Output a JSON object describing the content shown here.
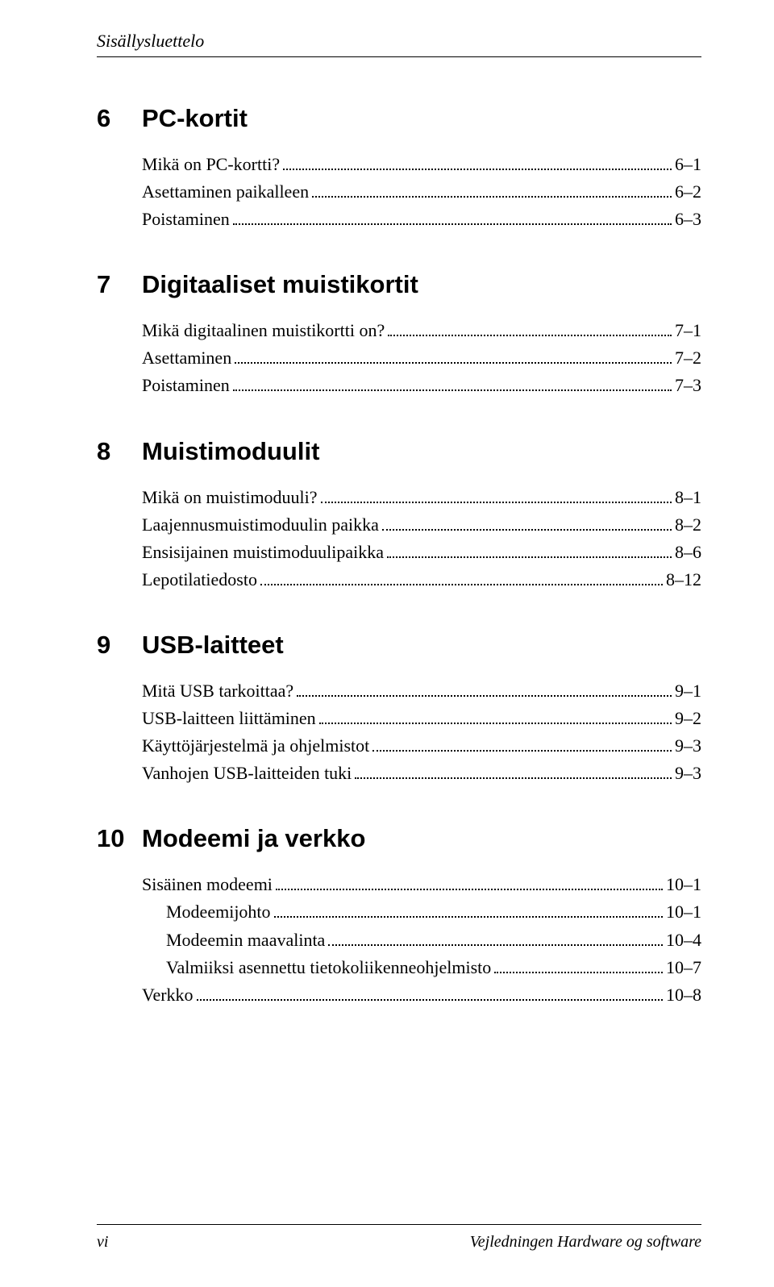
{
  "header": "Sisällysluettelo",
  "chapters": [
    {
      "num": "6",
      "title": "PC-kortit",
      "entries": [
        {
          "label": "Mikä on PC-kortti?",
          "page": "6–1",
          "sub": false
        },
        {
          "label": "Asettaminen paikalleen",
          "page": "6–2",
          "sub": false
        },
        {
          "label": "Poistaminen",
          "page": "6–3",
          "sub": false
        }
      ]
    },
    {
      "num": "7",
      "title": "Digitaaliset muistikortit",
      "entries": [
        {
          "label": "Mikä digitaalinen muistikortti on?",
          "page": "7–1",
          "sub": false
        },
        {
          "label": "Asettaminen",
          "page": "7–2",
          "sub": false
        },
        {
          "label": "Poistaminen",
          "page": "7–3",
          "sub": false
        }
      ]
    },
    {
      "num": "8",
      "title": "Muistimoduulit",
      "entries": [
        {
          "label": "Mikä on muistimoduuli?",
          "page": "8–1",
          "sub": false
        },
        {
          "label": "Laajennusmuistimoduulin paikka",
          "page": "8–2",
          "sub": false
        },
        {
          "label": "Ensisijainen muistimoduulipaikka",
          "page": "8–6",
          "sub": false
        },
        {
          "label": "Lepotilatiedosto",
          "page": "8–12",
          "sub": false
        }
      ]
    },
    {
      "num": "9",
      "title": "USB-laitteet",
      "entries": [
        {
          "label": "Mitä USB tarkoittaa?",
          "page": "9–1",
          "sub": false
        },
        {
          "label": "USB-laitteen liittäminen",
          "page": "9–2",
          "sub": false
        },
        {
          "label": "Käyttöjärjestelmä ja ohjelmistot",
          "page": "9–3",
          "sub": false
        },
        {
          "label": "Vanhojen USB-laitteiden tuki",
          "page": "9–3",
          "sub": false
        }
      ]
    },
    {
      "num": "10",
      "title": "Modeemi ja verkko",
      "entries": [
        {
          "label": "Sisäinen modeemi",
          "page": "10–1",
          "sub": false
        },
        {
          "label": "Modeemijohto",
          "page": "10–1",
          "sub": true
        },
        {
          "label": "Modeemin maavalinta",
          "page": "10–4",
          "sub": true
        },
        {
          "label": "Valmiiksi asennettu tietokoliikenneohjelmisto",
          "page": "10–7",
          "sub": true
        },
        {
          "label": "Verkko",
          "page": "10–8",
          "sub": false
        }
      ]
    }
  ],
  "footer": {
    "left": "vi",
    "right": "Vejledningen Hardware og software"
  }
}
